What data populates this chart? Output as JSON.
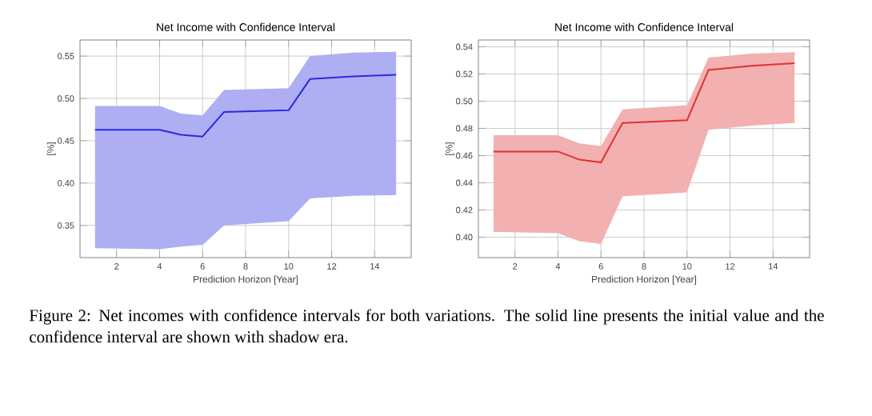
{
  "chart_data": [
    {
      "type": "line",
      "title": "Net Income with Confidence Interval",
      "xlabel": "Prediction Horizon [Year]",
      "ylabel": "[%]",
      "x": [
        1,
        4,
        5,
        6,
        7,
        10,
        11,
        13,
        15
      ],
      "series": [
        {
          "color": "#2a2ae0",
          "values": [
            0.463,
            0.463,
            0.457,
            0.455,
            0.484,
            0.486,
            0.523,
            0.526,
            0.528
          ],
          "lower": [
            0.323,
            0.322,
            0.325,
            0.327,
            0.35,
            0.355,
            0.382,
            0.385,
            0.386
          ],
          "upper": [
            0.491,
            0.491,
            0.482,
            0.48,
            0.51,
            0.512,
            0.55,
            0.554,
            0.555
          ]
        }
      ],
      "xlim": [
        0.3,
        15.7
      ],
      "ylim": [
        0.312,
        0.569
      ],
      "xticks": [
        2,
        4,
        6,
        8,
        10,
        12,
        14
      ],
      "yticks": [
        {
          "value": 0.35,
          "label": "0.35"
        },
        {
          "value": 0.4,
          "label": "0.40"
        },
        {
          "value": 0.45,
          "label": "0.45"
        },
        {
          "value": 0.5,
          "label": "0.50"
        },
        {
          "value": 0.55,
          "label": "0.55"
        }
      ],
      "grid": true
    },
    {
      "type": "line",
      "title": "Net Income with Confidence Interval",
      "xlabel": "Prediction Horizon [Year]",
      "ylabel": "[%]",
      "x": [
        1,
        4,
        5,
        6,
        7,
        10,
        11,
        13,
        15
      ],
      "series": [
        {
          "color": "#e03030",
          "values": [
            0.463,
            0.463,
            0.457,
            0.455,
            0.484,
            0.486,
            0.523,
            0.526,
            0.528
          ],
          "lower": [
            0.404,
            0.403,
            0.397,
            0.395,
            0.43,
            0.433,
            0.479,
            0.482,
            0.484
          ],
          "upper": [
            0.475,
            0.475,
            0.469,
            0.467,
            0.494,
            0.497,
            0.532,
            0.535,
            0.536
          ]
        }
      ],
      "xlim": [
        0.3,
        15.7
      ],
      "ylim": [
        0.385,
        0.545
      ],
      "xticks": [
        2,
        4,
        6,
        8,
        10,
        12,
        14
      ],
      "yticks": [
        {
          "value": 0.4,
          "label": "0.40"
        },
        {
          "value": 0.42,
          "label": "0.42"
        },
        {
          "value": 0.44,
          "label": "0.44"
        },
        {
          "value": 0.46,
          "label": "0.46"
        },
        {
          "value": 0.48,
          "label": "0.48"
        },
        {
          "value": 0.5,
          "label": "0.50"
        },
        {
          "value": 0.52,
          "label": "0.52"
        },
        {
          "value": 0.54,
          "label": "0.54"
        }
      ],
      "grid": true
    },
    {
      "type": "other",
      "annotations": [
        "Figure 2: Net incomes with confidence intervals for both variations. The solid line presents the initial value and the confidence interval are shown with shadow era."
      ]
    }
  ]
}
